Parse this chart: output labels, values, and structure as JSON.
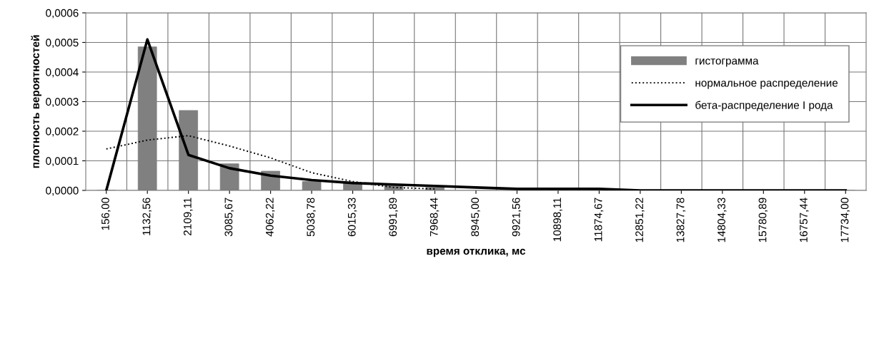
{
  "chart_data": {
    "type": "bar",
    "xlabel": "время отклика, мс",
    "ylabel": "плотность вероятностей",
    "categories": [
      "156,00",
      "1132,56",
      "2109,11",
      "3085,67",
      "4062,22",
      "5038,78",
      "6015,33",
      "6991,89",
      "7968,44",
      "8945,00",
      "9921,56",
      "10898,11",
      "11874,67",
      "12851,22",
      "13827,78",
      "14804,33",
      "15780,89",
      "16757,44",
      "17734,00"
    ],
    "series": [
      {
        "name": "гистограмма",
        "color": "#808080",
        "values": [
          0,
          0.000485,
          0.00027,
          9e-05,
          6.5e-05,
          3e-05,
          2.5e-05,
          2e-05,
          1e-05,
          null,
          null,
          0,
          0,
          0,
          0,
          0,
          0,
          0,
          0
        ]
      },
      {
        "name": "нормальное распределение",
        "type": "line",
        "color": "#000000",
        "line_style": "dotted",
        "values": [
          0.00014,
          0.00017,
          0.000185,
          0.00015,
          0.00011,
          6e-05,
          3e-05,
          1e-05,
          5e-06,
          null,
          null,
          null,
          null,
          null,
          null,
          null,
          null,
          null,
          null
        ]
      },
      {
        "name": "бета-распределение I рода",
        "type": "line",
        "color": "#000000",
        "line_style": "solid",
        "values": [
          0,
          0.00051,
          0.00012,
          7.5e-05,
          5e-05,
          3.5e-05,
          2.5e-05,
          2e-05,
          1.5e-05,
          1e-05,
          5e-06,
          5e-06,
          5e-06,
          0,
          0,
          0,
          0,
          0,
          0
        ]
      }
    ],
    "ylim": [
      0,
      0.0006
    ],
    "yticks": [
      {
        "value": 0,
        "label": "0,0000"
      },
      {
        "value": 0.0001,
        "label": "0,0001"
      },
      {
        "value": 0.0002,
        "label": "0,0002"
      },
      {
        "value": 0.0003,
        "label": "0,0003"
      },
      {
        "value": 0.0004,
        "label": "0,0004"
      },
      {
        "value": 0.0005,
        "label": "0,0005"
      },
      {
        "value": 0.0006,
        "label": "0,0006"
      }
    ],
    "grid": true,
    "legend": "right"
  }
}
